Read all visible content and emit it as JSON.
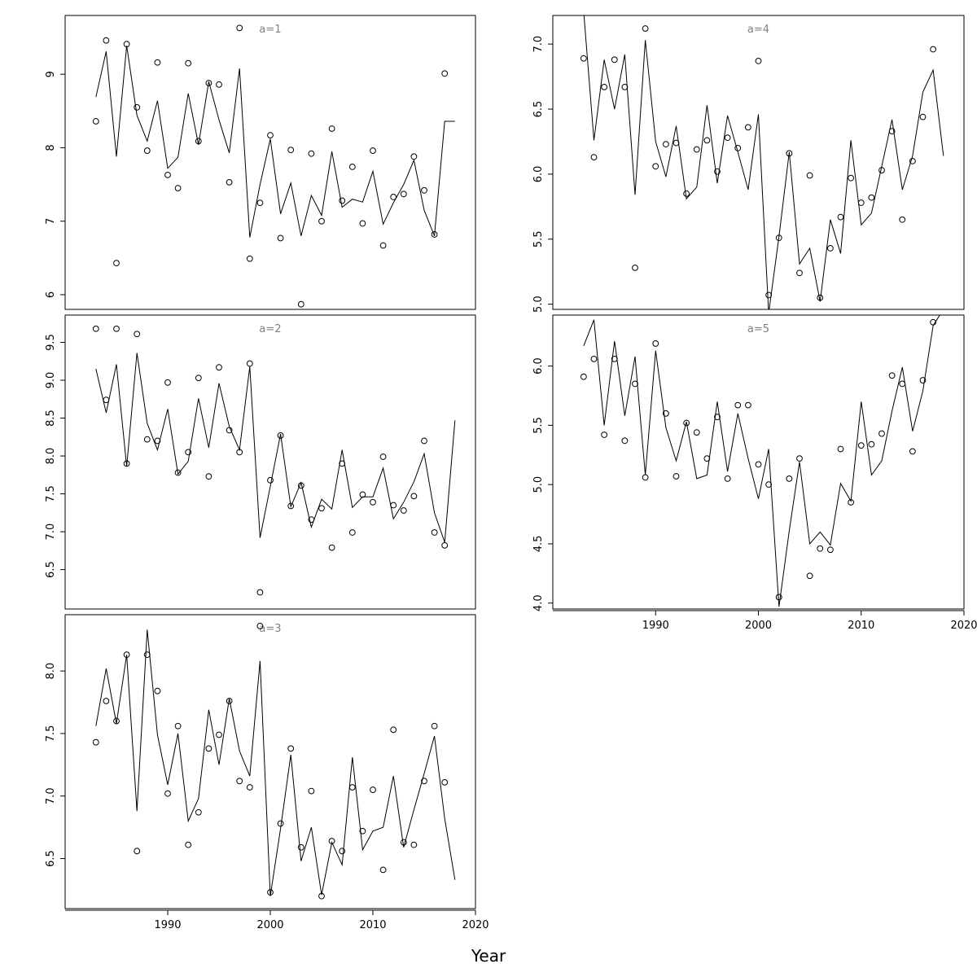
{
  "figure": {
    "xlabel": "Year"
  },
  "chart_data": [
    {
      "type": "scatter",
      "panel": "a=1",
      "title": "a=1",
      "xlim": [
        1980,
        2020
      ],
      "ylim": [
        5.8,
        9.8
      ],
      "xticks": [
        1990,
        2000,
        2010,
        2020
      ],
      "yticks": [
        6,
        7,
        8,
        9
      ],
      "show_xaxis": false,
      "points": {
        "x": [
          1983,
          1984,
          1985,
          1986,
          1987,
          1988,
          1989,
          1990,
          1991,
          1992,
          1993,
          1994,
          1995,
          1996,
          1997,
          1998,
          1999,
          2000,
          2001,
          2002,
          2003,
          2004,
          2005,
          2006,
          2007,
          2008,
          2009,
          2010,
          2011,
          2012,
          2013,
          2014,
          2015,
          2016,
          2017
        ],
        "y": [
          8.36,
          9.46,
          6.43,
          9.41,
          8.55,
          7.96,
          9.16,
          7.63,
          7.45,
          9.15,
          8.09,
          8.88,
          8.86,
          7.53,
          9.63,
          6.49,
          7.25,
          8.17,
          6.77,
          7.97,
          5.87,
          7.92,
          7.0,
          8.26,
          7.28,
          7.74,
          6.97,
          7.96,
          6.67,
          7.33,
          7.37,
          7.88,
          7.42,
          6.82,
          9.01
        ]
      },
      "line": {
        "x": [
          1983,
          1984,
          1985,
          1986,
          1987,
          1988,
          1989,
          1990,
          1991,
          1992,
          1993,
          1994,
          1995,
          1996,
          1997,
          1998,
          1999,
          2000,
          2001,
          2002,
          2003,
          2004,
          2005,
          2006,
          2007,
          2008,
          2009,
          2010,
          2011,
          2012,
          2013,
          2014,
          2015,
          2016,
          2017,
          2018
        ],
        "y": [
          8.69,
          9.31,
          7.88,
          9.39,
          8.44,
          8.09,
          8.64,
          7.72,
          7.87,
          8.74,
          8.04,
          8.9,
          8.38,
          7.93,
          9.08,
          6.78,
          7.5,
          8.12,
          7.1,
          7.52,
          6.8,
          7.35,
          7.08,
          7.95,
          7.19,
          7.3,
          7.26,
          7.68,
          6.96,
          7.25,
          7.5,
          7.83,
          7.15,
          6.8,
          8.36,
          8.36
        ]
      }
    },
    {
      "type": "scatter",
      "panel": "a=2",
      "title": "a=2",
      "xlim": [
        1980,
        2020
      ],
      "ylim": [
        5.98,
        9.86
      ],
      "xticks": [
        1990,
        2000,
        2010,
        2020
      ],
      "yticks": [
        6.5,
        7.0,
        7.5,
        8.0,
        8.5,
        9.0,
        9.5
      ],
      "show_xaxis": false,
      "points": {
        "x": [
          1983,
          1984,
          1985,
          1986,
          1987,
          1988,
          1989,
          1990,
          1991,
          1992,
          1993,
          1994,
          1995,
          1996,
          1997,
          1998,
          1999,
          2000,
          2001,
          2002,
          2003,
          2004,
          2005,
          2006,
          2007,
          2008,
          2009,
          2010,
          2011,
          2012,
          2013,
          2014,
          2015,
          2016,
          2017
        ],
        "y": [
          9.68,
          8.74,
          9.68,
          7.9,
          9.61,
          8.22,
          8.2,
          8.97,
          7.78,
          8.05,
          9.03,
          7.73,
          9.17,
          8.34,
          8.05,
          9.22,
          6.2,
          7.68,
          8.27,
          7.34,
          7.61,
          7.16,
          7.31,
          6.79,
          7.9,
          6.99,
          7.49,
          7.39,
          7.99,
          7.35,
          7.28,
          7.47,
          8.2,
          6.99,
          6.82
        ]
      },
      "line": {
        "x": [
          1983,
          1984,
          1985,
          1986,
          1987,
          1988,
          1989,
          1990,
          1991,
          1992,
          1993,
          1994,
          1995,
          1996,
          1997,
          1998,
          1999,
          2000,
          2001,
          2002,
          2003,
          2004,
          2005,
          2006,
          2007,
          2008,
          2009,
          2010,
          2011,
          2012,
          2013,
          2014,
          2015,
          2016,
          2017,
          2018
        ],
        "y": [
          9.15,
          8.57,
          9.21,
          7.86,
          9.36,
          8.43,
          8.08,
          8.62,
          7.76,
          7.93,
          8.76,
          8.11,
          8.96,
          8.39,
          8.08,
          9.18,
          6.92,
          7.6,
          8.29,
          7.33,
          7.65,
          7.06,
          7.43,
          7.3,
          8.08,
          7.32,
          7.46,
          7.46,
          7.84,
          7.17,
          7.39,
          7.66,
          8.03,
          7.25,
          6.86,
          8.47
        ]
      }
    },
    {
      "type": "scatter",
      "panel": "a=3",
      "title": "a=3",
      "xlim": [
        1980,
        2020
      ],
      "ylim": [
        6.1,
        8.45
      ],
      "xticks": [
        1990,
        2000,
        2010,
        2020
      ],
      "yticks": [
        6.5,
        7.0,
        7.5,
        8.0
      ],
      "show_xaxis": true,
      "points": {
        "x": [
          1983,
          1984,
          1985,
          1986,
          1987,
          1988,
          1989,
          1990,
          1991,
          1992,
          1993,
          1994,
          1995,
          1996,
          1997,
          1998,
          1999,
          2000,
          2001,
          2002,
          2003,
          2004,
          2005,
          2006,
          2007,
          2008,
          2009,
          2010,
          2011,
          2012,
          2013,
          2014,
          2015,
          2016,
          2017
        ],
        "y": [
          7.43,
          7.76,
          7.6,
          8.13,
          6.56,
          8.13,
          7.84,
          7.02,
          7.56,
          6.61,
          6.87,
          7.38,
          7.49,
          7.76,
          7.12,
          7.07,
          8.36,
          6.23,
          6.78,
          7.38,
          6.59,
          7.04,
          6.2,
          6.64,
          6.56,
          7.07,
          6.72,
          7.05,
          6.41,
          7.53,
          6.63,
          6.61,
          7.12,
          7.56,
          7.11
        ]
      },
      "line": {
        "x": [
          1983,
          1984,
          1985,
          1986,
          1987,
          1988,
          1989,
          1990,
          1991,
          1992,
          1993,
          1994,
          1995,
          1996,
          1997,
          1998,
          1999,
          2000,
          2001,
          2002,
          2003,
          2004,
          2005,
          2006,
          2007,
          2008,
          2009,
          2010,
          2011,
          2012,
          2013,
          2014,
          2015,
          2016,
          2017,
          2018
        ],
        "y": [
          7.56,
          8.02,
          7.58,
          8.13,
          6.88,
          8.33,
          7.49,
          7.09,
          7.5,
          6.8,
          6.98,
          7.69,
          7.25,
          7.78,
          7.36,
          7.16,
          8.08,
          6.2,
          6.74,
          7.33,
          6.48,
          6.75,
          6.21,
          6.63,
          6.45,
          7.31,
          6.57,
          6.72,
          6.75,
          7.16,
          6.59,
          6.89,
          7.18,
          7.48,
          6.82,
          6.33
        ]
      }
    },
    {
      "type": "scatter",
      "panel": "a=4",
      "title": "a=4",
      "xlim": [
        1980,
        2020
      ],
      "ylim": [
        4.96,
        7.22
      ],
      "xticks": [
        1990,
        2000,
        2010,
        2020
      ],
      "yticks": [
        5.0,
        5.5,
        6.0,
        6.5,
        7.0
      ],
      "show_xaxis": false,
      "points": {
        "x": [
          1983,
          1984,
          1985,
          1986,
          1987,
          1988,
          1989,
          1990,
          1991,
          1992,
          1993,
          1994,
          1995,
          1996,
          1997,
          1998,
          1999,
          2000,
          2001,
          2002,
          2003,
          2004,
          2005,
          2006,
          2007,
          2008,
          2009,
          2010,
          2011,
          2012,
          2013,
          2014,
          2015,
          2016,
          2017
        ],
        "y": [
          6.89,
          6.13,
          6.67,
          6.88,
          6.67,
          5.28,
          7.12,
          6.06,
          6.23,
          6.24,
          5.85,
          6.19,
          6.26,
          6.02,
          6.28,
          6.2,
          6.36,
          6.87,
          5.07,
          5.51,
          6.16,
          5.24,
          5.99,
          5.05,
          5.43,
          5.67,
          5.97,
          5.78,
          5.82,
          6.03,
          6.33,
          5.65,
          6.1,
          6.44,
          6.96
        ]
      },
      "line": {
        "x": [
          1983,
          1984,
          1985,
          1986,
          1987,
          1988,
          1989,
          1990,
          1991,
          1992,
          1993,
          1994,
          1995,
          1996,
          1997,
          1998,
          1999,
          2000,
          2001,
          2002,
          2003,
          2004,
          2005,
          2006,
          2007,
          2008,
          2009,
          2010,
          2011,
          2012,
          2013,
          2014,
          2015,
          2016,
          2017,
          2018
        ],
        "y": [
          7.25,
          6.26,
          6.88,
          6.5,
          6.92,
          5.84,
          7.03,
          6.25,
          5.98,
          6.37,
          5.81,
          5.9,
          6.53,
          5.93,
          6.45,
          6.17,
          5.88,
          6.46,
          4.93,
          5.52,
          6.17,
          5.31,
          5.43,
          5.02,
          5.65,
          5.39,
          6.26,
          5.61,
          5.7,
          6.06,
          6.42,
          5.88,
          6.14,
          6.63,
          6.8,
          6.14
        ]
      }
    },
    {
      "type": "scatter",
      "panel": "a=5",
      "title": "a=5",
      "xlim": [
        1980,
        2020
      ],
      "ylim": [
        3.95,
        6.43
      ],
      "xticks": [
        1990,
        2000,
        2010,
        2020
      ],
      "yticks": [
        4.0,
        4.5,
        5.0,
        5.5,
        6.0
      ],
      "show_xaxis": true,
      "points": {
        "x": [
          1983,
          1984,
          1985,
          1986,
          1987,
          1988,
          1989,
          1990,
          1991,
          1992,
          1993,
          1994,
          1995,
          1996,
          1997,
          1998,
          1999,
          2000,
          2001,
          2002,
          2003,
          2004,
          2005,
          2006,
          2007,
          2008,
          2009,
          2010,
          2011,
          2012,
          2013,
          2014,
          2015,
          2016,
          2017
        ],
        "y": [
          5.91,
          6.06,
          5.42,
          6.06,
          5.37,
          5.85,
          5.06,
          6.19,
          5.6,
          5.07,
          5.52,
          5.44,
          5.22,
          5.57,
          5.05,
          5.67,
          5.67,
          5.17,
          5.0,
          4.05,
          5.05,
          5.22,
          4.23,
          4.46,
          4.45,
          5.3,
          4.85,
          5.33,
          5.34,
          5.43,
          5.92,
          5.85,
          5.28,
          5.88,
          6.37
        ]
      },
      "line": {
        "x": [
          1983,
          1984,
          1985,
          1986,
          1987,
          1988,
          1989,
          1990,
          1991,
          1992,
          1993,
          1994,
          1995,
          1996,
          1997,
          1998,
          1999,
          2000,
          2001,
          2002,
          2003,
          2004,
          2005,
          2006,
          2007,
          2008,
          2009,
          2010,
          2011,
          2012,
          2013,
          2014,
          2015,
          2016,
          2017,
          2018
        ],
        "y": [
          6.17,
          6.39,
          5.5,
          6.21,
          5.58,
          6.08,
          5.08,
          6.13,
          5.48,
          5.2,
          5.53,
          5.05,
          5.08,
          5.7,
          5.11,
          5.6,
          5.22,
          4.88,
          5.3,
          3.97,
          4.61,
          5.19,
          4.5,
          4.6,
          4.49,
          5.01,
          4.86,
          5.7,
          5.08,
          5.2,
          5.62,
          5.99,
          5.45,
          5.79,
          6.34,
          6.48
        ]
      }
    }
  ]
}
